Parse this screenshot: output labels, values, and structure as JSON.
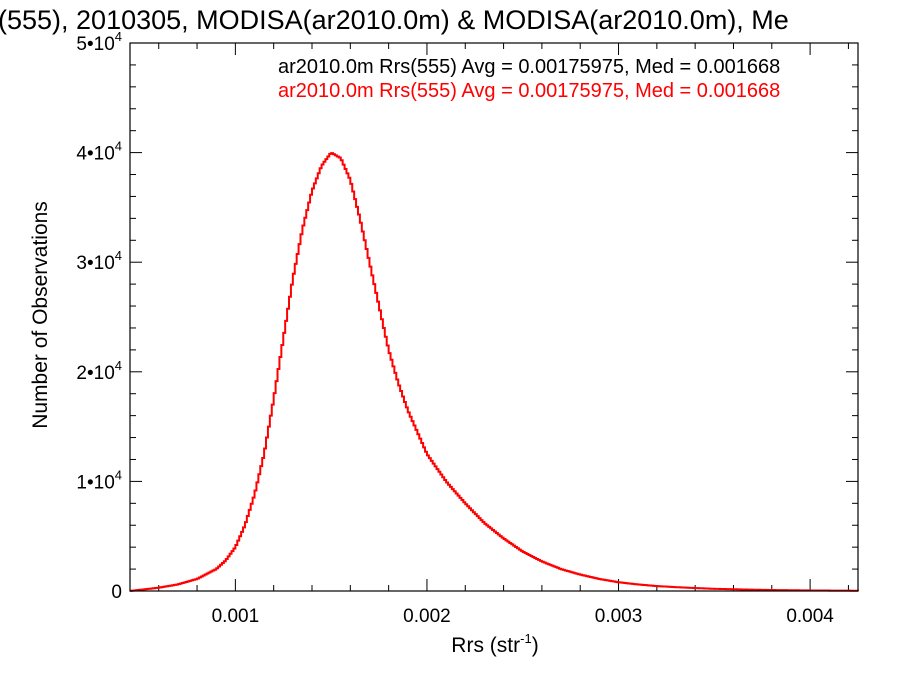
{
  "chart_data": {
    "type": "line",
    "style": "step-histogram",
    "title": "(555), 2010305, MODISA(ar2010.0m) & MODISA(ar2010.0m), Me",
    "xlabel": "Rrs (str",
    "xlabel_exp": "-1",
    "xlabel_close": ")",
    "ylabel": "Number of Observations",
    "xlim": [
      0.00045,
      0.00425
    ],
    "ylim": [
      0,
      50000
    ],
    "x_ticks": [
      {
        "value": 0.001,
        "label": "0.001"
      },
      {
        "value": 0.002,
        "label": "0.002"
      },
      {
        "value": 0.003,
        "label": "0.003"
      },
      {
        "value": 0.004,
        "label": "0.004"
      }
    ],
    "y_ticks": [
      {
        "value": 0,
        "label": "0",
        "exp": ""
      },
      {
        "value": 10000,
        "label": "1•10",
        "exp": "4"
      },
      {
        "value": 20000,
        "label": "2•10",
        "exp": "4"
      },
      {
        "value": 30000,
        "label": "3•10",
        "exp": "4"
      },
      {
        "value": 40000,
        "label": "4•10",
        "exp": "4"
      },
      {
        "value": 50000,
        "label": "5•10",
        "exp": "4"
      }
    ],
    "legend": [
      {
        "text": "ar2010.0m Rrs(555) Avg = 0.00175975, Med = 0.001668",
        "color": "#000000"
      },
      {
        "text": "ar2010.0m Rrs(555) Avg = 0.00175975, Med = 0.001668",
        "color": "#ff0000"
      }
    ],
    "legend_position": "top-right",
    "series": [
      {
        "color": "#ff0000",
        "x": [
          0.00045,
          0.0005,
          0.0006,
          0.0007,
          0.0008,
          0.0009,
          0.00095,
          0.001,
          0.00105,
          0.0011,
          0.00115,
          0.0012,
          0.00125,
          0.0013,
          0.00135,
          0.0014,
          0.00145,
          0.0015,
          0.00155,
          0.0016,
          0.00165,
          0.0017,
          0.00175,
          0.0018,
          0.00185,
          0.0019,
          0.00195,
          0.002,
          0.0021,
          0.0022,
          0.0023,
          0.0024,
          0.0025,
          0.0026,
          0.0027,
          0.0028,
          0.0029,
          0.003,
          0.0031,
          0.0032,
          0.0033,
          0.0034,
          0.0035,
          0.0036,
          0.0037,
          0.0038,
          0.0039,
          0.004,
          0.0041,
          0.0042,
          0.00425
        ],
        "y": [
          0,
          100,
          300,
          600,
          1100,
          2000,
          2800,
          4000,
          6000,
          8800,
          12500,
          17500,
          23000,
          28500,
          33000,
          36500,
          38800,
          40000,
          39500,
          37500,
          34000,
          30000,
          26000,
          22000,
          19000,
          16500,
          14500,
          12500,
          10000,
          8000,
          6200,
          4800,
          3600,
          2700,
          2000,
          1500,
          1100,
          800,
          600,
          450,
          350,
          270,
          200,
          160,
          120,
          90,
          70,
          50,
          40,
          30,
          25
        ]
      }
    ]
  }
}
